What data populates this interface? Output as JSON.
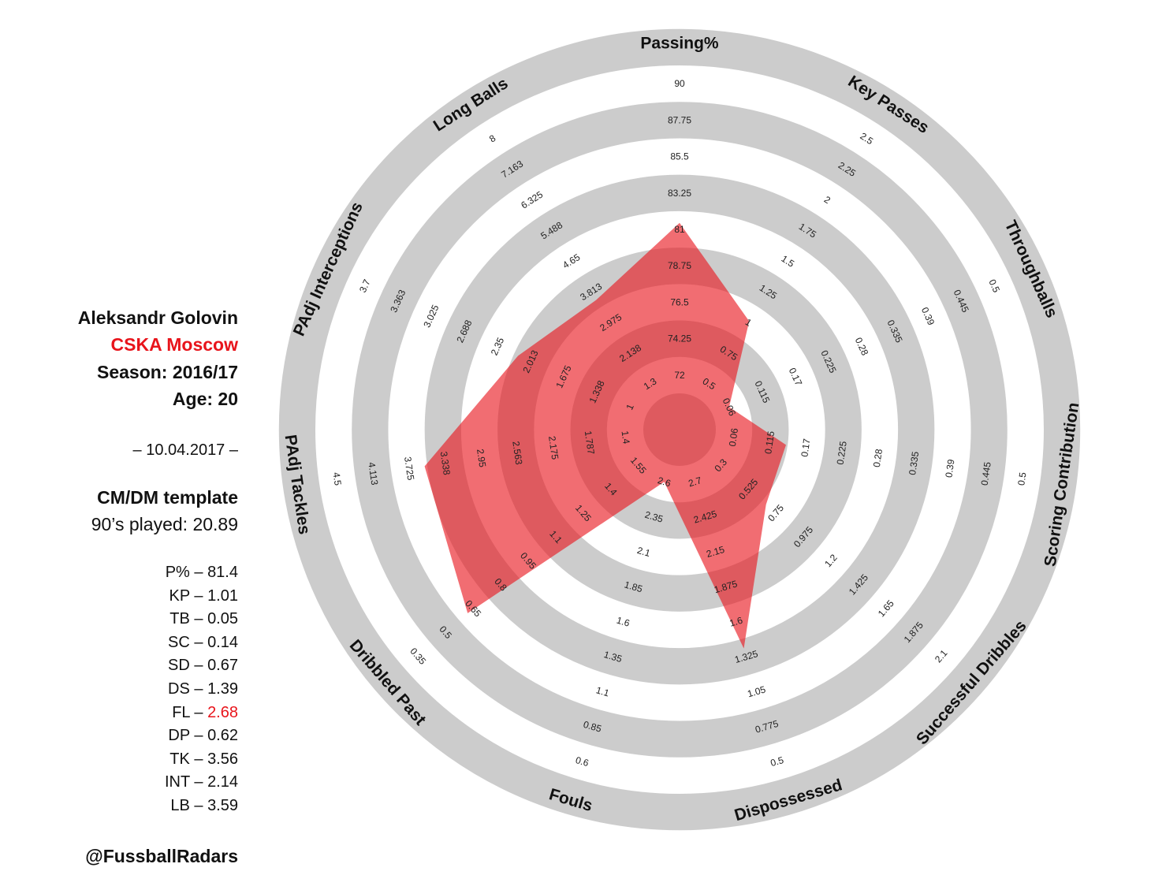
{
  "player": {
    "name": "Aleksandr Golovin",
    "team": "CSKA Moscow",
    "season": "Season: 2016/17",
    "age": "Age: 20",
    "date": "– 10.04.2017 –",
    "template": "CM/DM template",
    "played": "90’s played: 20.89"
  },
  "stats": [
    {
      "abbr": "P%",
      "value": "81.4"
    },
    {
      "abbr": "KP",
      "value": "1.01"
    },
    {
      "abbr": "TB",
      "value": "0.05"
    },
    {
      "abbr": "SC",
      "value": "0.14"
    },
    {
      "abbr": "SD",
      "value": "0.67"
    },
    {
      "abbr": "DS",
      "value": "1.39"
    },
    {
      "abbr": "FL",
      "value": "2.68",
      "highlight": true
    },
    {
      "abbr": "DP",
      "value": "0.62"
    },
    {
      "abbr": "TK",
      "value": "3.56"
    },
    {
      "abbr": "INT",
      "value": "2.14"
    },
    {
      "abbr": "LB",
      "value": "3.59"
    }
  ],
  "handle": "@FussballRadars",
  "chart_data": {
    "type": "radar",
    "fill_color": "#e8141b",
    "ring_color": "#cccccc",
    "axes": [
      {
        "name": "Passing%",
        "ticks": [
          "72",
          "74.25",
          "76.5",
          "78.75",
          "81",
          "83.25",
          "85.5",
          "87.75",
          "90"
        ],
        "min": 72,
        "max": 90,
        "value": 81.4
      },
      {
        "name": "Key Passes",
        "ticks": [
          "0.5",
          "0.75",
          "1",
          "1.25",
          "1.5",
          "1.75",
          "2",
          "2.25",
          "2.5"
        ],
        "min": 0.5,
        "max": 2.5,
        "value": 1.01
      },
      {
        "name": "Throughballs",
        "ticks": [
          "0.06",
          "0.115",
          "0.17",
          "0.225",
          "0.28",
          "0.335",
          "0.39",
          "0.445",
          "0.5"
        ],
        "min": 0.06,
        "max": 0.5,
        "value": 0.05
      },
      {
        "name": "Scoring Contribution",
        "ticks": [
          "0.06",
          "0.115",
          "0.17",
          "0.225",
          "0.28",
          "0.335",
          "0.39",
          "0.445",
          "0.5"
        ],
        "min": 0.06,
        "max": 0.5,
        "value": 0.14
      },
      {
        "name": "Successful Dribbles",
        "ticks": [
          "0.3",
          "0.525",
          "0.75",
          "0.975",
          "1.2",
          "1.425",
          "1.65",
          "1.875",
          "2.1"
        ],
        "min": 0.3,
        "max": 2.1,
        "value": 0.67
      },
      {
        "name": "Dispossessed",
        "ticks": [
          "2.7",
          "2.425",
          "2.15",
          "1.875",
          "1.6",
          "1.325",
          "1.05",
          "0.775",
          "0.5"
        ],
        "min": 2.7,
        "max": 0.5,
        "value": 1.39
      },
      {
        "name": "Fouls",
        "ticks": [
          "2.6",
          "2.35",
          "2.1",
          "1.85",
          "1.6",
          "1.35",
          "1.1",
          "0.85",
          "0.6"
        ],
        "min": 2.6,
        "max": 0.6,
        "value": 2.68
      },
      {
        "name": "Dribbled Past",
        "ticks": [
          "1.55",
          "1.4",
          "1.25",
          "1.1",
          "0.95",
          "0.8",
          "0.65",
          "0.5",
          "0.35"
        ],
        "min": 1.55,
        "max": 0.35,
        "value": 0.62
      },
      {
        "name": "PAdj Tackles",
        "ticks": [
          "1.4",
          "1.787",
          "2.175",
          "2.563",
          "2.95",
          "3.338",
          "3.725",
          "4.113",
          "4.5"
        ],
        "min": 1.4,
        "max": 4.5,
        "value": 3.56
      },
      {
        "name": "PAdj Interceptions",
        "ticks": [
          "1",
          "1.338",
          "1.675",
          "2.013",
          "2.35",
          "2.688",
          "3.025",
          "3.363",
          "3.7"
        ],
        "min": 1,
        "max": 3.7,
        "value": 2.14
      },
      {
        "name": "Long Balls",
        "ticks": [
          "1.3",
          "2.138",
          "2.975",
          "3.813",
          "4.65",
          "5.488",
          "6.325",
          "7.163",
          "8"
        ],
        "min": 1.3,
        "max": 8,
        "value": 3.59
      }
    ]
  }
}
